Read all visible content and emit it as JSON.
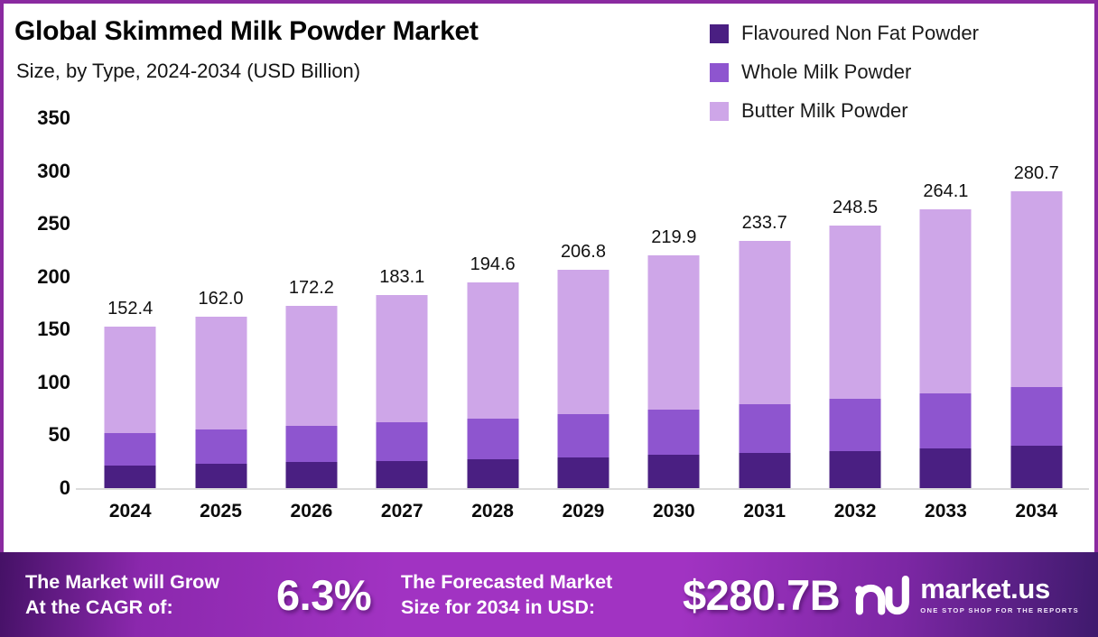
{
  "header": {
    "title": "Global Skimmed Milk Powder Market",
    "subtitle": "Size, by Type, 2024-2034 (USD Billion)"
  },
  "chart_data": {
    "type": "bar",
    "stacked": true,
    "title": "Global Skimmed Milk Powder Market",
    "subtitle": "Size, by Type, 2024-2034 (USD Billion)",
    "unit": "USD Billion",
    "categories": [
      "2024",
      "2025",
      "2026",
      "2027",
      "2028",
      "2029",
      "2030",
      "2031",
      "2032",
      "2033",
      "2034"
    ],
    "series": [
      {
        "name": "Flavoured Non Fat Powder",
        "color": "#4A1F82",
        "values": [
          21.6,
          23.0,
          24.4,
          26.0,
          27.6,
          29.3,
          31.2,
          33.1,
          35.2,
          37.4,
          39.8
        ]
      },
      {
        "name": "Whole Milk Powder",
        "color": "#8E55CF",
        "values": [
          30.2,
          32.1,
          34.1,
          36.2,
          38.5,
          40.9,
          43.5,
          46.2,
          49.1,
          52.2,
          55.5
        ]
      },
      {
        "name": "Butter Milk Powder",
        "color": "#CEA6E8",
        "values": [
          100.6,
          106.9,
          113.7,
          120.9,
          128.5,
          136.6,
          145.2,
          154.4,
          164.2,
          174.5,
          185.4
        ]
      }
    ],
    "totals": [
      152.4,
      162.0,
      172.2,
      183.1,
      194.6,
      206.8,
      219.9,
      233.7,
      248.5,
      264.1,
      280.7
    ],
    "total_labels": [
      "152.4",
      "162.0",
      "172.2",
      "183.1",
      "194.6",
      "206.8",
      "219.9",
      "233.7",
      "248.5",
      "264.1",
      "280.7"
    ],
    "yticks": [
      0,
      50,
      100,
      150,
      200,
      250,
      300,
      350
    ],
    "ylim": [
      0,
      350
    ],
    "grid": false,
    "legend_position": "top-right"
  },
  "footer": {
    "cagr_line1": "The Market will Grow",
    "cagr_line2": "At the CAGR of:",
    "cagr_value": "6.3%",
    "forecast_line1": "The Forecasted Market",
    "forecast_line2": "Size for 2034 in USD:",
    "forecast_value": "$280.7B",
    "brand_name": "market.us",
    "brand_tagline": "ONE STOP SHOP FOR THE REPORTS"
  },
  "colors": {
    "border": "#8A2AA0",
    "series_dark": "#4A1F82",
    "series_medium": "#8E55CF",
    "series_light": "#CEA6E8",
    "footer_gradient_mid": "#A133C2",
    "footer_gradient_edge": "#451166",
    "baseline": "#DCDCDC"
  }
}
